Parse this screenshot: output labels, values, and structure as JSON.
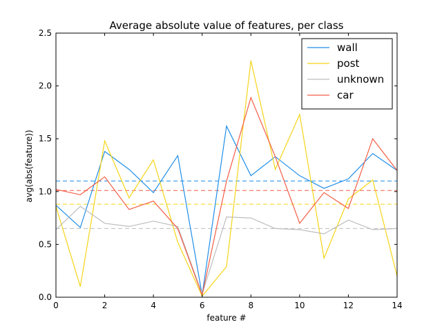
{
  "chart_data": {
    "type": "line",
    "title": "Average absolute value of features, per class",
    "xlabel": "feature #",
    "ylabel": "avg(abs(feature))",
    "xlim": [
      0,
      14
    ],
    "ylim": [
      0,
      2.5
    ],
    "xticks": [
      "0",
      "2",
      "4",
      "6",
      "8",
      "10",
      "12",
      "14"
    ],
    "yticks": [
      "0.0",
      "0.5",
      "1.0",
      "1.5",
      "2.0",
      "2.5"
    ],
    "grid": false,
    "legend_position": "top-right",
    "x": [
      0,
      1,
      2,
      3,
      4,
      5,
      6,
      7,
      8,
      9,
      10,
      11,
      12,
      13,
      14
    ],
    "series": [
      {
        "name": "wall",
        "color": "#1f8ee8",
        "values": [
          0.87,
          0.66,
          1.38,
          1.21,
          0.99,
          1.34,
          0.02,
          1.62,
          1.15,
          1.33,
          1.15,
          1.03,
          1.12,
          1.36,
          1.2
        ],
        "mean": 1.1
      },
      {
        "name": "post",
        "color": "#f5d416",
        "values": [
          0.86,
          0.1,
          1.48,
          0.94,
          1.3,
          0.52,
          0.01,
          0.29,
          2.24,
          1.21,
          1.73,
          0.37,
          0.93,
          1.11,
          0.2
        ],
        "mean": 0.88
      },
      {
        "name": "unknown",
        "color": "#bdbdbd",
        "values": [
          0.64,
          0.86,
          0.7,
          0.67,
          0.72,
          0.67,
          0.03,
          0.76,
          0.75,
          0.65,
          0.64,
          0.6,
          0.73,
          0.64,
          0.65
        ],
        "mean": 0.65
      },
      {
        "name": "car",
        "color": "#f25c45",
        "values": [
          1.02,
          0.97,
          1.14,
          0.83,
          0.91,
          0.65,
          0.02,
          1.1,
          1.89,
          1.33,
          0.7,
          0.99,
          0.84,
          1.5,
          1.2
        ],
        "mean": 1.01
      }
    ]
  }
}
